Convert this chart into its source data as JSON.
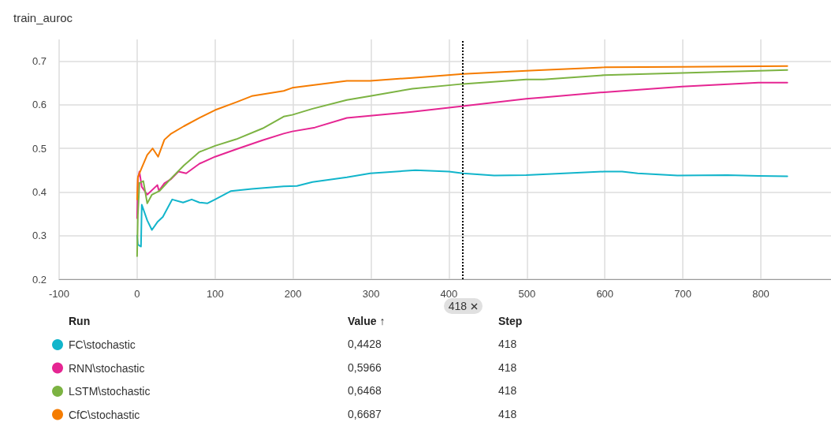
{
  "chart_data": {
    "type": "line",
    "title": "train_auroc",
    "xlim": [
      -100,
      890
    ],
    "xticks": [
      -100,
      0,
      100,
      200,
      300,
      400,
      500,
      600,
      700,
      800
    ],
    "ylim": [
      0.2,
      0.75
    ],
    "yticks": [
      0.2,
      0.3,
      0.4,
      0.5,
      0.6,
      0.7
    ],
    "grid": true,
    "legend": "bottom",
    "marker": "none",
    "line_style": "solid",
    "ref_lines": [
      {
        "axis": "x",
        "value": 418,
        "label": "418",
        "color": "#000000",
        "line_style": "dotted"
      }
    ],
    "series": [
      {
        "name": "FC\\stochastic",
        "color": "#12b5cb",
        "x": [
          0,
          1,
          3,
          5,
          6,
          13,
          19,
          26,
          33,
          45,
          59,
          70,
          80,
          90,
          100,
          120,
          147,
          188,
          205,
          225,
          269,
          299,
          357,
          400,
          418,
          458,
          499,
          599,
          622,
          642,
          693,
          757,
          797,
          834
        ],
        "values": [
          0.3,
          0.28,
          0.277,
          0.275,
          0.371,
          0.335,
          0.313,
          0.331,
          0.343,
          0.383,
          0.376,
          0.383,
          0.376,
          0.374,
          0.383,
          0.402,
          0.407,
          0.413,
          0.414,
          0.423,
          0.434,
          0.443,
          0.45,
          0.447,
          0.443,
          0.438,
          0.439,
          0.447,
          0.447,
          0.443,
          0.438,
          0.439,
          0.437,
          0.436
        ]
      },
      {
        "name": "RNN\\stochastic",
        "color": "#e52592",
        "x": [
          0,
          1,
          3,
          6,
          13,
          26,
          28,
          35,
          43,
          53,
          63,
          80,
          100,
          127,
          161,
          188,
          199,
          228,
          269,
          299,
          353,
          418,
          499,
          521,
          599,
          699,
          797,
          834
        ],
        "values": [
          0.34,
          0.431,
          0.447,
          0.412,
          0.394,
          0.416,
          0.403,
          0.42,
          0.429,
          0.447,
          0.443,
          0.465,
          0.481,
          0.498,
          0.519,
          0.534,
          0.539,
          0.548,
          0.57,
          0.575,
          0.584,
          0.597,
          0.614,
          0.617,
          0.629,
          0.642,
          0.651,
          0.651
        ]
      },
      {
        "name": "LSTM\\stochastic",
        "color": "#7cb342",
        "x": [
          0,
          1,
          3,
          8,
          13,
          19,
          29,
          43,
          60,
          80,
          100,
          127,
          161,
          188,
          199,
          225,
          269,
          299,
          353,
          418,
          499,
          521,
          599,
          699,
          834
        ],
        "values": [
          0.253,
          0.347,
          0.421,
          0.425,
          0.374,
          0.394,
          0.403,
          0.43,
          0.461,
          0.492,
          0.506,
          0.521,
          0.546,
          0.573,
          0.577,
          0.591,
          0.611,
          0.62,
          0.637,
          0.648,
          0.658,
          0.658,
          0.668,
          0.673,
          0.68
        ]
      },
      {
        "name": "CfC\\stochastic",
        "color": "#f57c00",
        "x": [
          0,
          1,
          6,
          13,
          20,
          27,
          35,
          43,
          60,
          80,
          100,
          127,
          147,
          188,
          199,
          269,
          299,
          353,
          418,
          499,
          521,
          599,
          699,
          834
        ],
        "values": [
          0.383,
          0.434,
          0.456,
          0.485,
          0.5,
          0.481,
          0.52,
          0.533,
          0.551,
          0.57,
          0.588,
          0.606,
          0.62,
          0.632,
          0.639,
          0.655,
          0.655,
          0.662,
          0.671,
          0.678,
          0.68,
          0.686,
          0.687,
          0.689
        ]
      }
    ],
    "annotations": [
      "Run",
      "Value ↑",
      "Step",
      "0,4428",
      "0,5966",
      "0,6468",
      "0,6687",
      "418",
      "418",
      "418",
      "418"
    ]
  }
}
